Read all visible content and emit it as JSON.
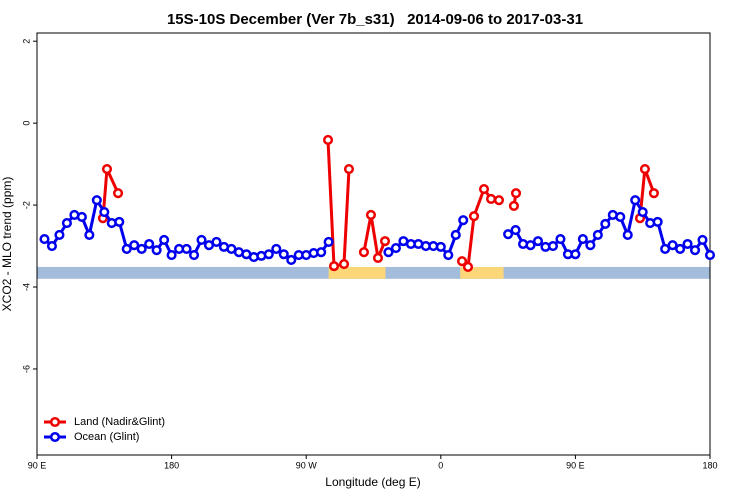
{
  "chart_data": {
    "type": "line",
    "title": "15S-10S December (Ver 7b_s31)   2014-09-06 to 2017-03-31",
    "x_label": "Longitude (deg E)",
    "y_label": "XCO2 - MLO trend (ppm)",
    "xlim": [
      90,
      540
    ],
    "ylim": [
      -8.1,
      2.2
    ],
    "xticks": [
      {
        "value": 90,
        "label": "90 E"
      },
      180,
      {
        "value": 270,
        "label": "90 W"
      },
      {
        "value": 360,
        "label": "0"
      },
      {
        "value": 450,
        "label": "90 E"
      },
      {
        "value": 540,
        "label": "180"
      }
    ],
    "yticks": [
      -6,
      -4,
      -2,
      0,
      2
    ],
    "surface_band": {
      "ylim": [
        -3.8,
        -3.51
      ],
      "ocean_color": "#a4bcdc",
      "land_color": "#fcd77a",
      "land_spans": [
        [
          285,
          323
        ],
        [
          373,
          402
        ]
      ]
    },
    "legend": "bottom-left",
    "series": [
      {
        "name": "Land (Nadir&Glint)",
        "color": "#ee0000",
        "x": [
          134.1,
          136.8,
          144.2,
          null,
          284.6,
          288.6,
          295.3,
          298.6,
          null,
          308.6,
          313.3,
          318.0,
          322.7,
          null,
          374.2,
          378.2,
          382.2,
          388.9,
          393.6,
          398.9,
          null,
          408.9,
          410.3,
          null,
          493.2,
          496.5,
          502.5
        ],
        "values": [
          -2.32,
          -1.12,
          -1.71,
          null,
          -0.41,
          -3.49,
          -3.44,
          -1.12,
          null,
          -3.15,
          -2.24,
          -3.29,
          -2.88,
          null,
          -3.37,
          -3.51,
          -2.27,
          -1.61,
          -1.85,
          -1.88,
          null,
          -2.02,
          -1.71,
          null,
          -2.32,
          -1.12,
          -1.71
        ]
      },
      {
        "name": "Ocean (Glint)",
        "color": "#0000ee",
        "x": [
          95,
          100,
          105,
          110,
          115,
          120,
          125,
          130,
          135,
          140,
          145,
          150,
          155,
          160,
          165,
          170,
          175,
          180,
          185,
          190,
          195,
          200,
          205,
          210,
          215,
          220,
          225,
          230,
          235,
          240,
          245,
          250,
          255,
          260,
          265,
          270,
          275,
          280,
          285,
          null,
          325,
          330,
          335,
          340,
          345,
          350,
          355,
          360,
          365,
          370,
          375,
          null,
          405,
          410,
          415,
          420,
          425,
          430,
          435,
          440,
          445,
          450,
          455,
          460,
          465,
          470,
          475,
          480,
          485,
          490,
          495,
          500,
          505,
          510,
          515,
          520,
          525,
          530,
          535,
          540
        ],
        "values": [
          -2.83,
          -3.0,
          -2.73,
          -2.44,
          -2.24,
          -2.29,
          -2.73,
          -1.88,
          -2.17,
          -2.44,
          -2.41,
          -3.07,
          -2.98,
          -3.07,
          -2.95,
          -3.1,
          -2.85,
          -3.22,
          -3.07,
          -3.07,
          -3.22,
          -2.85,
          -2.98,
          -2.9,
          -3.02,
          -3.07,
          -3.15,
          -3.2,
          -3.27,
          -3.24,
          -3.2,
          -3.07,
          -3.2,
          -3.34,
          -3.22,
          -3.22,
          -3.17,
          -3.15,
          -2.9,
          null,
          -3.15,
          -3.05,
          -2.88,
          -2.95,
          -2.95,
          -3.0,
          -3.0,
          -3.02,
          -3.22,
          -2.73,
          -2.37,
          null,
          -2.71,
          -2.61,
          -2.95,
          -2.98,
          -2.88,
          -3.02,
          -3.0,
          -2.83,
          -3.2,
          -3.2,
          -2.83,
          -2.98,
          -2.73,
          -2.46,
          -2.24,
          -2.29,
          -2.73,
          -1.88,
          -2.17,
          -2.44,
          -2.41,
          -3.07,
          -2.98,
          -3.07,
          -2.95,
          -3.1,
          -2.85,
          -3.22
        ]
      }
    ]
  }
}
